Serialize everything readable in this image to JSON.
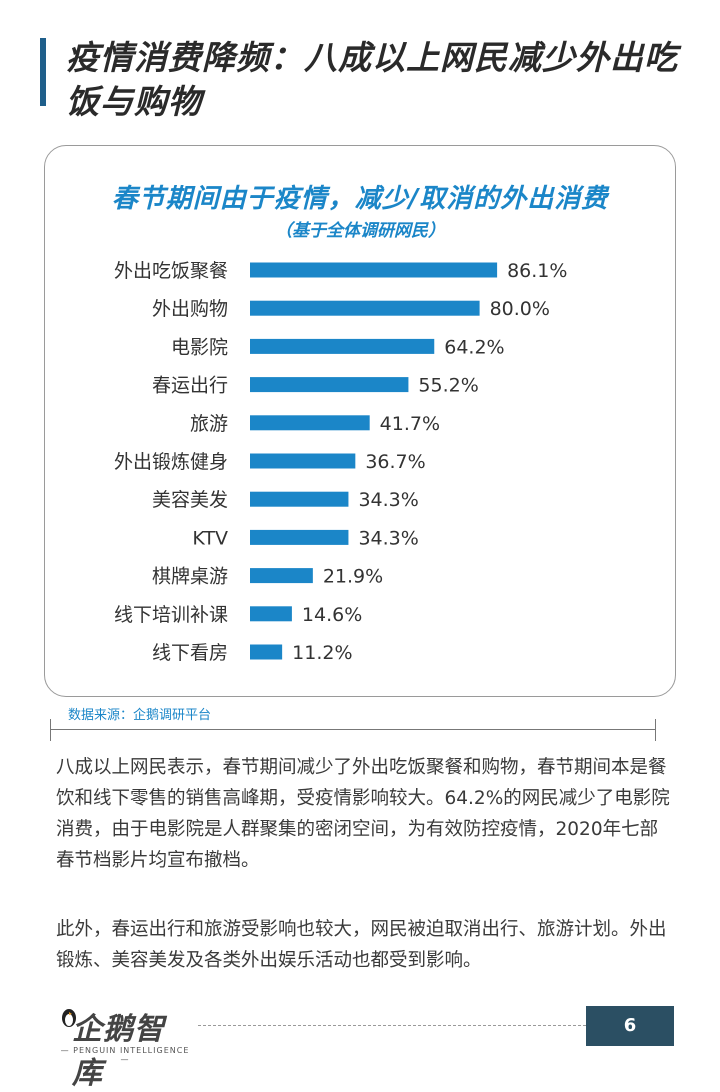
{
  "page": {
    "title": "疫情消费降频：八成以上网民减少外出吃饭与购物",
    "source": "数据来源：企鹅调研平台",
    "paragraphs": [
      "八成以上网民表示，春节期间减少了外出吃饭聚餐和购物，春节期间本是餐饮和线下零售的销售高峰期，受疫情影响较大。64.2%的网民减少了电影院消费，由于电影院是人群聚集的密闭空间，为有效防控疫情，2020年七部春节档影片均宣布撤档。",
      "此外，春运出行和旅游受影响也较大，网民被迫取消出行、旅游计划。外出锻炼、美容美发及各类外出娱乐活动也都受到影响。"
    ],
    "logo_text": "企鹅智库",
    "logo_sub": "— PENGUIN INTELLIGENCE —",
    "page_number": "6"
  },
  "chart_data": {
    "type": "bar",
    "orientation": "horizontal",
    "title": "春节期间由于疫情，减少/取消的外出消费",
    "subtitle": "（基于全体调研网民）",
    "categories": [
      "外出吃饭聚餐",
      "外出购物",
      "电影院",
      "春运出行",
      "旅游",
      "外出锻炼健身",
      "美容美发",
      "KTV",
      "棋牌桌游",
      "线下培训补课",
      "线下看房"
    ],
    "values": [
      86.1,
      80.0,
      64.2,
      55.2,
      41.7,
      36.7,
      34.3,
      34.3,
      21.9,
      14.6,
      11.2
    ],
    "value_suffix": "%",
    "xlim": [
      0,
      100
    ],
    "grid": false,
    "legend": "none",
    "bar_color": "#1b86c8"
  }
}
